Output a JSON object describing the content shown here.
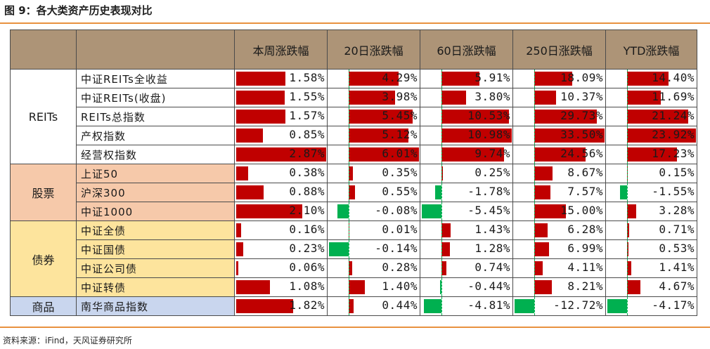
{
  "title": "图 9：各大类资产历史表现对比",
  "source": "资料来源：iFind，天风证券研究所",
  "colors": {
    "positive": "#c00000",
    "negative": "#00b050",
    "header": "#ad9477",
    "stocks": "#f6c9aa",
    "bonds": "#fde49d",
    "commodities": "#c9d6ee",
    "rule": "#e8913f"
  },
  "chart_data": {
    "type": "table",
    "columns": [
      "本周涨跌幅",
      "20日涨跌幅",
      "60日涨跌幅",
      "250日涨跌幅",
      "YTD涨跌幅"
    ],
    "column_ranges": [
      [
        -2.87,
        2.87
      ],
      [
        -6.01,
        6.01
      ],
      [
        -10.98,
        10.98
      ],
      [
        -33.5,
        33.5
      ],
      [
        -23.92,
        23.92
      ]
    ],
    "groups": [
      {
        "label": "REITs",
        "cls": "sec-REITs",
        "rows": [
          {
            "name": "中证REITs全收益",
            "values": [
              1.58,
              4.29,
              5.91,
              18.09,
              14.4
            ],
            "labels": [
              "1.58%",
              "4.29%",
              "5.91%",
              "18.09%",
              "14.40%"
            ]
          },
          {
            "name": "中证REITs(收盘)",
            "values": [
              1.55,
              3.98,
              3.8,
              10.37,
              11.69
            ],
            "labels": [
              "1.55%",
              "3.98%",
              "3.80%",
              "10.37%",
              "11.69%"
            ]
          },
          {
            "name": "REITs总指数",
            "values": [
              1.57,
              5.45,
              10.53,
              29.73,
              21.24
            ],
            "labels": [
              "1.57%",
              "5.45%",
              "10.53%",
              "29.73%",
              "21.24%"
            ]
          },
          {
            "name": "产权指数",
            "values": [
              0.85,
              5.12,
              10.98,
              33.5,
              23.92
            ],
            "labels": [
              "0.85%",
              "5.12%",
              "10.98%",
              "33.50%",
              "23.92%"
            ]
          },
          {
            "name": "经营权指数",
            "values": [
              2.87,
              6.01,
              9.74,
              24.56,
              17.23
            ],
            "labels": [
              "2.87%",
              "6.01%",
              "9.74%",
              "24.56%",
              "17.23%"
            ]
          }
        ]
      },
      {
        "label": "股票",
        "cls": "sec-stocks",
        "rows": [
          {
            "name": "上证50",
            "values": [
              0.38,
              0.35,
              0.25,
              8.67,
              0.15
            ],
            "labels": [
              "0.38%",
              "0.35%",
              "0.25%",
              "8.67%",
              "0.15%"
            ]
          },
          {
            "name": "沪深300",
            "values": [
              0.88,
              0.55,
              -1.78,
              7.57,
              -1.55
            ],
            "labels": [
              "0.88%",
              "0.55%",
              "-1.78%",
              "7.57%",
              "-1.55%"
            ]
          },
          {
            "name": "中证1000",
            "values": [
              2.1,
              -0.08,
              -5.45,
              15.0,
              3.28
            ],
            "labels": [
              "2.10%",
              "-0.08%",
              "-5.45%",
              "15.00%",
              "3.28%"
            ]
          }
        ]
      },
      {
        "label": "债券",
        "cls": "sec-bonds",
        "rows": [
          {
            "name": "中证全债",
            "values": [
              0.16,
              0.01,
              1.43,
              6.28,
              0.71
            ],
            "labels": [
              "0.16%",
              "0.01%",
              "1.43%",
              "6.28%",
              "0.71%"
            ]
          },
          {
            "name": "中证国债",
            "values": [
              0.23,
              -0.14,
              1.28,
              6.99,
              0.53
            ],
            "labels": [
              "0.23%",
              "-0.14%",
              "1.28%",
              "6.99%",
              "0.53%"
            ]
          },
          {
            "name": "中证公司债",
            "values": [
              0.06,
              0.28,
              0.74,
              4.11,
              1.41
            ],
            "labels": [
              "0.06%",
              "0.28%",
              "0.74%",
              "4.11%",
              "1.41%"
            ]
          },
          {
            "name": "中证转债",
            "values": [
              1.08,
              1.4,
              -0.44,
              8.21,
              4.67
            ],
            "labels": [
              "1.08%",
              "1.40%",
              "-0.44%",
              "8.21%",
              "4.67%"
            ]
          }
        ]
      },
      {
        "label": "商品",
        "cls": "sec-commod",
        "rows": [
          {
            "name": "南华商品指数",
            "values": [
              1.82,
              0.44,
              -4.81,
              -12.72,
              -4.17
            ],
            "labels": [
              "1.82%",
              "0.44%",
              "-4.81%",
              "-12.72%",
              "-4.17%"
            ]
          }
        ]
      }
    ]
  }
}
